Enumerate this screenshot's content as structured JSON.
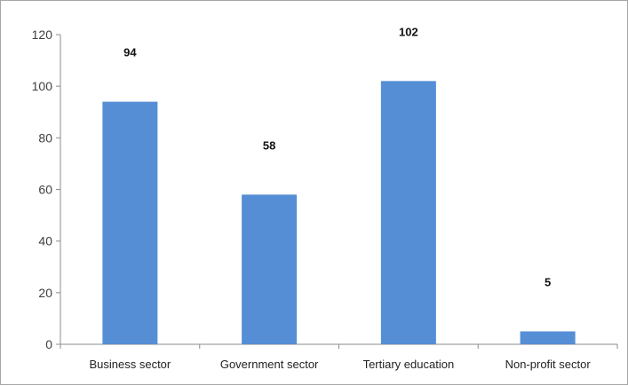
{
  "chart_data": {
    "type": "bar",
    "categories": [
      "Business sector",
      "Government sector",
      "Tertiary education",
      "Non-profit sector"
    ],
    "values": [
      94,
      58,
      102,
      5
    ],
    "data_labels": [
      "94",
      "58",
      "102",
      "5"
    ],
    "ylim": [
      0,
      120
    ],
    "yticks": [
      0,
      20,
      40,
      60,
      80,
      100,
      120
    ],
    "title": "",
    "xlabel": "",
    "ylabel": "",
    "bar_color": "#558ed5",
    "grid": false,
    "legend": "none"
  }
}
